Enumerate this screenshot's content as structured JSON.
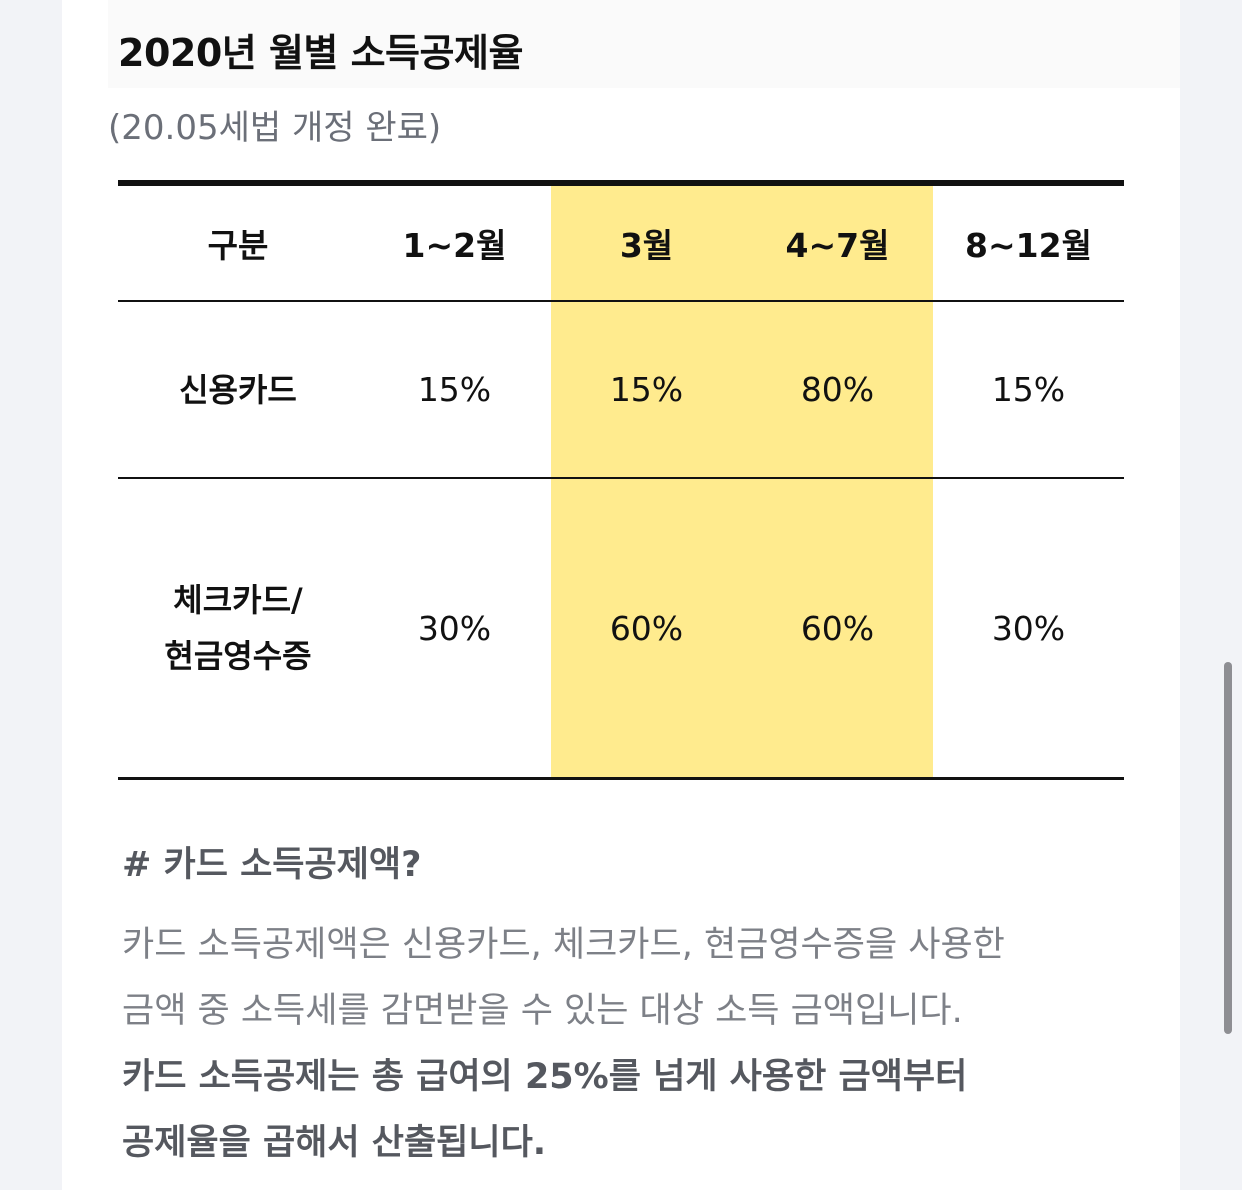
{
  "header": {
    "title": "2020년 월별 소득공제율",
    "subtitle": "(20.05세법 개정 완료)"
  },
  "table": {
    "columns": [
      "구분",
      "1~2월",
      "3월",
      "4~7월",
      "8~12월"
    ],
    "rows": [
      {
        "label_line1": "신용카드",
        "label_line2": "",
        "values": [
          "15%",
          "15%",
          "80%",
          "15%"
        ]
      },
      {
        "label_line1": "체크카드/",
        "label_line2": "현금영수증",
        "values": [
          "30%",
          "60%",
          "60%",
          "30%"
        ]
      }
    ],
    "highlight_color": "#ffeb8e",
    "highlight_columns": [
      "3월",
      "4~7월"
    ]
  },
  "section": {
    "heading": "# 카드 소득공제액?",
    "lines": [
      "카드 소득공제액은 신용카드, 체크카드, 현금영수증을 사용한",
      "금액 중 소득세를 감면받을 수 있는 대상 소득 금액입니다.",
      "카드 소득공제는 총 급여의 25%를 넘게 사용한 금액부터",
      "공제율을 곱해서 산출됩니다."
    ]
  }
}
